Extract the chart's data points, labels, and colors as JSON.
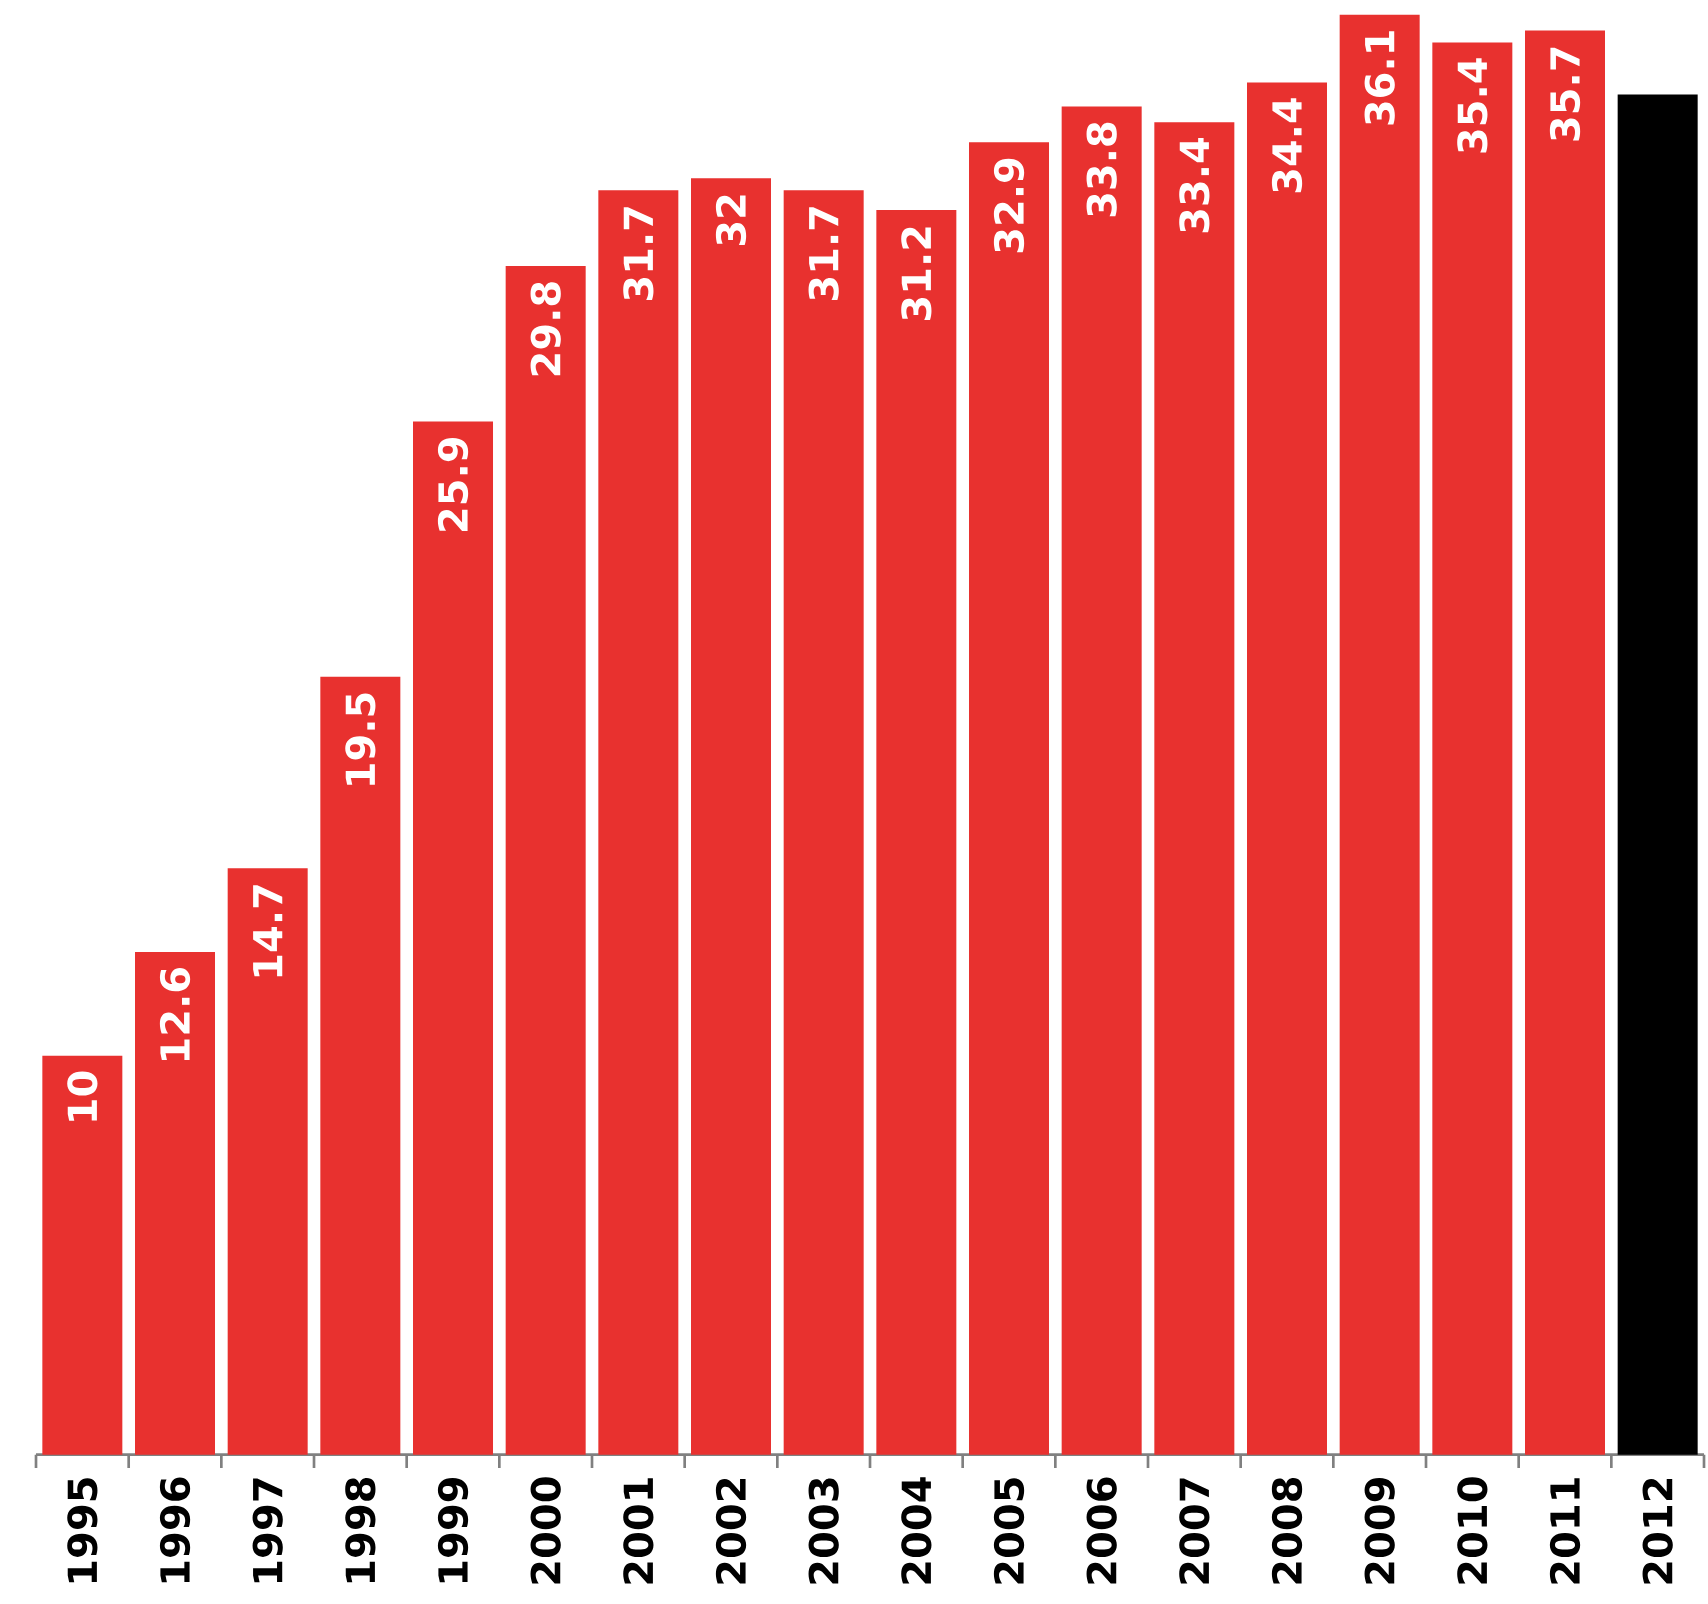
{
  "chart_data": {
    "type": "bar",
    "categories": [
      "1995",
      "1996",
      "1997",
      "1998",
      "1999",
      "2000",
      "2001",
      "2002",
      "2003",
      "2004",
      "2005",
      "2006",
      "2007",
      "2008",
      "2009",
      "2010",
      "2011",
      "2012"
    ],
    "values": [
      10,
      12.6,
      14.7,
      19.5,
      25.9,
      29.8,
      31.7,
      32,
      31.7,
      31.2,
      32.9,
      33.8,
      33.4,
      34.4,
      36.1,
      35.4,
      35.7,
      34.1
    ],
    "value_labels": [
      "10",
      "12.6",
      "14.7",
      "19.5",
      "25.9",
      "29.8",
      "31.7",
      "32",
      "31.7",
      "31.2",
      "32.9",
      "33.8",
      "33.4",
      "34.4",
      "36.1",
      "35.4",
      "35.7",
      null
    ],
    "colors": [
      "#e8312f",
      "#e8312f",
      "#e8312f",
      "#e8312f",
      "#e8312f",
      "#e8312f",
      "#e8312f",
      "#e8312f",
      "#e8312f",
      "#e8312f",
      "#e8312f",
      "#e8312f",
      "#e8312f",
      "#e8312f",
      "#e8312f",
      "#e8312f",
      "#e8312f",
      "#000000"
    ],
    "data_labels": false
  }
}
